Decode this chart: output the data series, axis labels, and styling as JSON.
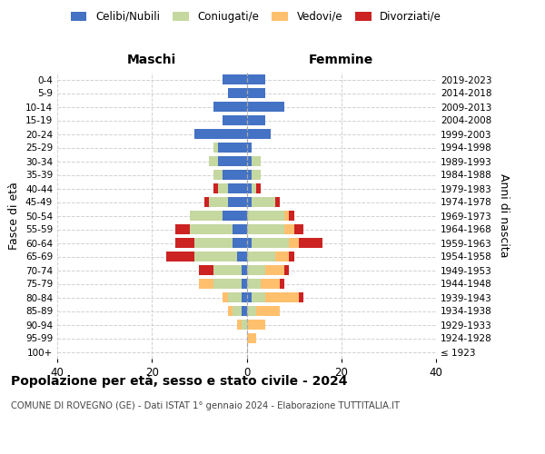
{
  "age_groups": [
    "100+",
    "95-99",
    "90-94",
    "85-89",
    "80-84",
    "75-79",
    "70-74",
    "65-69",
    "60-64",
    "55-59",
    "50-54",
    "45-49",
    "40-44",
    "35-39",
    "30-34",
    "25-29",
    "20-24",
    "15-19",
    "10-14",
    "5-9",
    "0-4"
  ],
  "birth_years": [
    "≤ 1923",
    "1924-1928",
    "1929-1933",
    "1934-1938",
    "1939-1943",
    "1944-1948",
    "1949-1953",
    "1954-1958",
    "1959-1963",
    "1964-1968",
    "1969-1973",
    "1974-1978",
    "1979-1983",
    "1984-1988",
    "1989-1993",
    "1994-1998",
    "1999-2003",
    "2004-2008",
    "2009-2013",
    "2014-2018",
    "2019-2023"
  ],
  "maschi": {
    "celibi": [
      0,
      0,
      0,
      1,
      1,
      1,
      1,
      2,
      3,
      3,
      5,
      4,
      4,
      5,
      6,
      6,
      11,
      5,
      7,
      4,
      5
    ],
    "coniugati": [
      0,
      0,
      1,
      2,
      3,
      6,
      6,
      9,
      8,
      9,
      7,
      4,
      2,
      2,
      2,
      1,
      0,
      0,
      0,
      0,
      0
    ],
    "vedovi": [
      0,
      0,
      1,
      1,
      1,
      3,
      0,
      0,
      0,
      0,
      0,
      0,
      0,
      0,
      0,
      0,
      0,
      0,
      0,
      0,
      0
    ],
    "divorziati": [
      0,
      0,
      0,
      0,
      0,
      0,
      3,
      6,
      4,
      3,
      0,
      1,
      1,
      0,
      0,
      0,
      0,
      0,
      0,
      0,
      0
    ]
  },
  "femmine": {
    "nubili": [
      0,
      0,
      0,
      0,
      1,
      0,
      0,
      0,
      1,
      0,
      0,
      1,
      1,
      1,
      1,
      1,
      5,
      4,
      8,
      4,
      4
    ],
    "coniugate": [
      0,
      0,
      0,
      2,
      3,
      3,
      4,
      6,
      8,
      8,
      8,
      5,
      1,
      2,
      2,
      0,
      0,
      0,
      0,
      0,
      0
    ],
    "vedove": [
      0,
      2,
      4,
      5,
      7,
      4,
      4,
      3,
      2,
      2,
      1,
      0,
      0,
      0,
      0,
      0,
      0,
      0,
      0,
      0,
      0
    ],
    "divorziate": [
      0,
      0,
      0,
      0,
      1,
      1,
      1,
      1,
      5,
      2,
      1,
      1,
      1,
      0,
      0,
      0,
      0,
      0,
      0,
      0,
      0
    ]
  },
  "colors": {
    "celibi_nubili": "#4472c4",
    "coniugati": "#c5d8a0",
    "vedovi": "#ffc06e",
    "divorziati": "#cc2222"
  },
  "xlim": 40,
  "title": "Popolazione per età, sesso e stato civile - 2024",
  "subtitle": "COMUNE DI ROVEGNO (GE) - Dati ISTAT 1° gennaio 2024 - Elaborazione TUTTITALIA.IT",
  "ylabel_left": "Fasce di età",
  "ylabel_right": "Anni di nascita",
  "maschi_label": "Maschi",
  "femmine_label": "Femmine",
  "legend_labels": [
    "Celibi/Nubili",
    "Coniugati/e",
    "Vedovi/e",
    "Divorziati/e"
  ],
  "grid_color": "#cccccc"
}
